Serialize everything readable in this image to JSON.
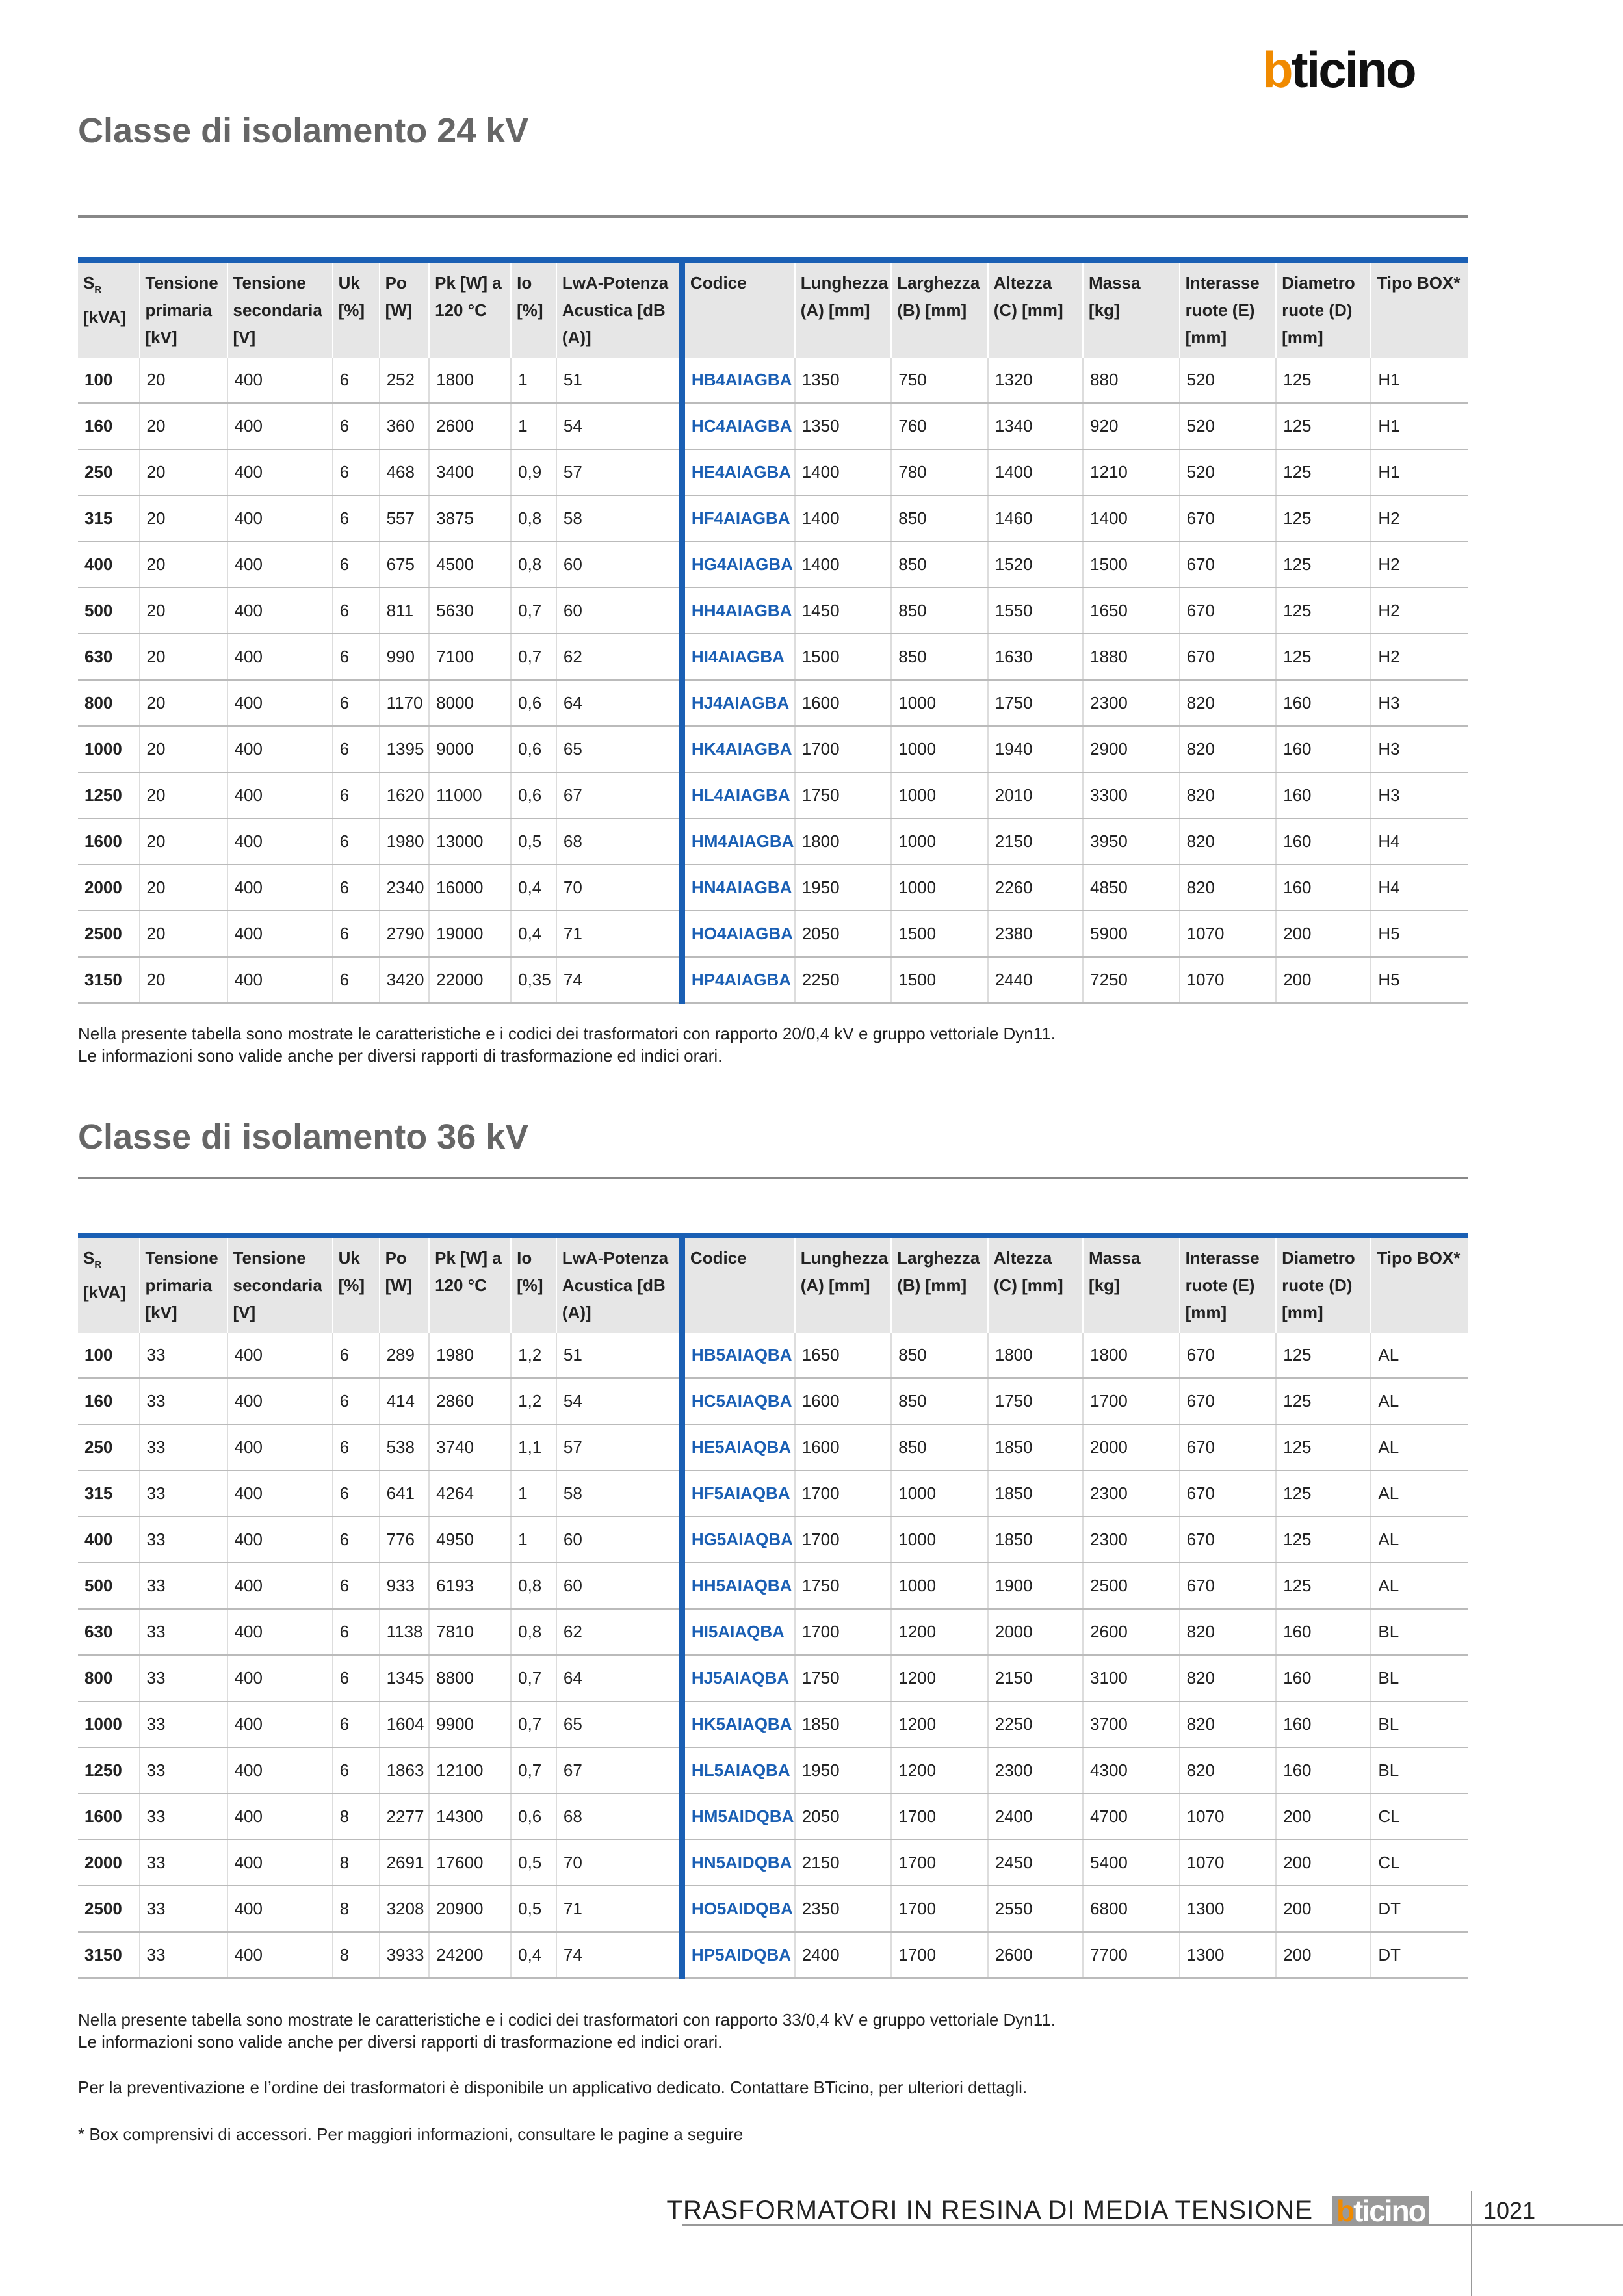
{
  "logo": "bticino",
  "sections": [
    {
      "title": "Classe di isolamento 24 kV",
      "header": [
        {
          "symbol": "S",
          "subscript": "R",
          "unit": "[kVA]"
        },
        "Tensione primaria [kV]",
        "Tensione secondaria [V]",
        "Uk [%]",
        "Po [W]",
        "Pk [W] a 120 °C",
        "Io [%]",
        "LwA-Potenza Acustica [dB (A)]",
        "Codice",
        "Lunghezza (A) [mm]",
        "Larghezza (B) [mm]",
        "Altezza (C) [mm]",
        "Massa [kg]",
        "Interasse ruote (E) [mm]",
        "Diametro ruote (D) [mm]",
        "Tipo BOX*"
      ],
      "rows": [
        [
          "100",
          "20",
          "400",
          "6",
          "252",
          "1800",
          "1",
          "51",
          "HB4AIAGBA",
          "1350",
          "750",
          "1320",
          "880",
          "520",
          "125",
          "H1"
        ],
        [
          "160",
          "20",
          "400",
          "6",
          "360",
          "2600",
          "1",
          "54",
          "HC4AIAGBA",
          "1350",
          "760",
          "1340",
          "920",
          "520",
          "125",
          "H1"
        ],
        [
          "250",
          "20",
          "400",
          "6",
          "468",
          "3400",
          "0,9",
          "57",
          "HE4AIAGBA",
          "1400",
          "780",
          "1400",
          "1210",
          "520",
          "125",
          "H1"
        ],
        [
          "315",
          "20",
          "400",
          "6",
          "557",
          "3875",
          "0,8",
          "58",
          "HF4AIAGBA",
          "1400",
          "850",
          "1460",
          "1400",
          "670",
          "125",
          "H2"
        ],
        [
          "400",
          "20",
          "400",
          "6",
          "675",
          "4500",
          "0,8",
          "60",
          "HG4AIAGBA",
          "1400",
          "850",
          "1520",
          "1500",
          "670",
          "125",
          "H2"
        ],
        [
          "500",
          "20",
          "400",
          "6",
          "811",
          "5630",
          "0,7",
          "60",
          "HH4AIAGBA",
          "1450",
          "850",
          "1550",
          "1650",
          "670",
          "125",
          "H2"
        ],
        [
          "630",
          "20",
          "400",
          "6",
          "990",
          "7100",
          "0,7",
          "62",
          "HI4AIAGBA",
          "1500",
          "850",
          "1630",
          "1880",
          "670",
          "125",
          "H2"
        ],
        [
          "800",
          "20",
          "400",
          "6",
          "1170",
          "8000",
          "0,6",
          "64",
          "HJ4AIAGBA",
          "1600",
          "1000",
          "1750",
          "2300",
          "820",
          "160",
          "H3"
        ],
        [
          "1000",
          "20",
          "400",
          "6",
          "1395",
          "9000",
          "0,6",
          "65",
          "HK4AIAGBA",
          "1700",
          "1000",
          "1940",
          "2900",
          "820",
          "160",
          "H3"
        ],
        [
          "1250",
          "20",
          "400",
          "6",
          "1620",
          "11000",
          "0,6",
          "67",
          "HL4AIAGBA",
          "1750",
          "1000",
          "2010",
          "3300",
          "820",
          "160",
          "H3"
        ],
        [
          "1600",
          "20",
          "400",
          "6",
          "1980",
          "13000",
          "0,5",
          "68",
          "HM4AIAGBA",
          "1800",
          "1000",
          "2150",
          "3950",
          "820",
          "160",
          "H4"
        ],
        [
          "2000",
          "20",
          "400",
          "6",
          "2340",
          "16000",
          "0,4",
          "70",
          "HN4AIAGBA",
          "1950",
          "1000",
          "2260",
          "4850",
          "820",
          "160",
          "H4"
        ],
        [
          "2500",
          "20",
          "400",
          "6",
          "2790",
          "19000",
          "0,4",
          "71",
          "HO4AIAGBA",
          "2050",
          "1500",
          "2380",
          "5900",
          "1070",
          "200",
          "H5"
        ],
        [
          "3150",
          "20",
          "400",
          "6",
          "3420",
          "22000",
          "0,35",
          "74",
          "HP4AIAGBA",
          "2250",
          "1500",
          "2440",
          "7250",
          "1070",
          "200",
          "H5"
        ]
      ],
      "notes": [
        "Nella presente tabella sono mostrate le caratteristiche e i codici dei trasformatori con rapporto 20/0,4 kV e gruppo vettoriale Dyn11.",
        "Le informazioni sono valide anche per diversi rapporti di trasformazione ed indici orari."
      ]
    },
    {
      "title": "Classe di isolamento 36 kV",
      "header": [
        {
          "symbol": "S",
          "subscript": "R",
          "unit": "[kVA]"
        },
        "Tensione primaria [kV]",
        "Tensione secondaria [V]",
        "Uk [%]",
        "Po [W]",
        "Pk [W] a 120 °C",
        "Io [%]",
        "LwA-Potenza Acustica [dB (A)]",
        "Codice",
        "Lunghezza (A) [mm]",
        "Larghezza (B) [mm]",
        "Altezza (C) [mm]",
        "Massa [kg]",
        "Interasse ruote (E) [mm]",
        "Diametro ruote (D) [mm]",
        "Tipo BOX*"
      ],
      "rows": [
        [
          "100",
          "33",
          "400",
          "6",
          "289",
          "1980",
          "1,2",
          "51",
          "HB5AIAQBA",
          "1650",
          "850",
          "1800",
          "1800",
          "670",
          "125",
          "AL"
        ],
        [
          "160",
          "33",
          "400",
          "6",
          "414",
          "2860",
          "1,2",
          "54",
          "HC5AIAQBA",
          "1600",
          "850",
          "1750",
          "1700",
          "670",
          "125",
          "AL"
        ],
        [
          "250",
          "33",
          "400",
          "6",
          "538",
          "3740",
          "1,1",
          "57",
          "HE5AIAQBA",
          "1600",
          "850",
          "1850",
          "2000",
          "670",
          "125",
          "AL"
        ],
        [
          "315",
          "33",
          "400",
          "6",
          "641",
          "4264",
          "1",
          "58",
          "HF5AIAQBA",
          "1700",
          "1000",
          "1850",
          "2300",
          "670",
          "125",
          "AL"
        ],
        [
          "400",
          "33",
          "400",
          "6",
          "776",
          "4950",
          "1",
          "60",
          "HG5AIAQBA",
          "1700",
          "1000",
          "1850",
          "2300",
          "670",
          "125",
          "AL"
        ],
        [
          "500",
          "33",
          "400",
          "6",
          "933",
          "6193",
          "0,8",
          "60",
          "HH5AIAQBA",
          "1750",
          "1000",
          "1900",
          "2500",
          "670",
          "125",
          "AL"
        ],
        [
          "630",
          "33",
          "400",
          "6",
          "1138",
          "7810",
          "0,8",
          "62",
          "HI5AIAQBA",
          "1700",
          "1200",
          "2000",
          "2600",
          "820",
          "160",
          "BL"
        ],
        [
          "800",
          "33",
          "400",
          "6",
          "1345",
          "8800",
          "0,7",
          "64",
          "HJ5AIAQBA",
          "1750",
          "1200",
          "2150",
          "3100",
          "820",
          "160",
          "BL"
        ],
        [
          "1000",
          "33",
          "400",
          "6",
          "1604",
          "9900",
          "0,7",
          "65",
          "HK5AIAQBA",
          "1850",
          "1200",
          "2250",
          "3700",
          "820",
          "160",
          "BL"
        ],
        [
          "1250",
          "33",
          "400",
          "6",
          "1863",
          "12100",
          "0,7",
          "67",
          "HL5AIAQBA",
          "1950",
          "1200",
          "2300",
          "4300",
          "820",
          "160",
          "BL"
        ],
        [
          "1600",
          "33",
          "400",
          "8",
          "2277",
          "14300",
          "0,6",
          "68",
          "HM5AIDQBA",
          "2050",
          "1700",
          "2400",
          "4700",
          "1070",
          "200",
          "CL"
        ],
        [
          "2000",
          "33",
          "400",
          "8",
          "2691",
          "17600",
          "0,5",
          "70",
          "HN5AIDQBA",
          "2150",
          "1700",
          "2450",
          "5400",
          "1070",
          "200",
          "CL"
        ],
        [
          "2500",
          "33",
          "400",
          "8",
          "3208",
          "20900",
          "0,5",
          "71",
          "HO5AIDQBA",
          "2350",
          "1700",
          "2550",
          "6800",
          "1300",
          "200",
          "DT"
        ],
        [
          "3150",
          "33",
          "400",
          "8",
          "3933",
          "24200",
          "0,4",
          "74",
          "HP5AIDQBA",
          "2400",
          "1700",
          "2600",
          "7700",
          "1300",
          "200",
          "DT"
        ]
      ],
      "notes": [
        "Nella presente tabella sono mostrate le caratteristiche e i codici dei trasformatori con rapporto 33/0,4 kV e gruppo vettoriale Dyn11.",
        "Le informazioni sono valide anche per diversi rapporti di trasformazione ed indici orari."
      ]
    }
  ],
  "notes": [
    "Per la preventivazione e l’ordine dei trasformatori è disponibile un applicativo dedicato. Contattare BTicino, per ulteriori dettagli.",
    "* Box comprensivi di accessori. Per maggiori informazioni, consultare le pagine a seguire"
  ],
  "footer": {
    "title": "TRASFORMATORI IN RESINA DI MEDIA TENSIONE",
    "logo": "bticino",
    "page": "1021"
  }
}
